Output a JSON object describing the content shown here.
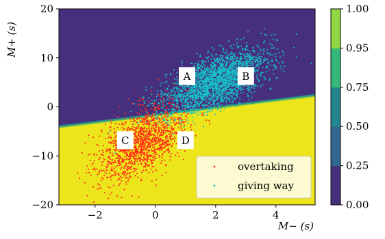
{
  "chart_data": {
    "type": "scatter",
    "title": "",
    "xlabel": "M− (s)",
    "ylabel": "M+ (s)",
    "xlim": [
      -3.2,
      5.3
    ],
    "ylim": [
      -20,
      20
    ],
    "xticks": [
      -2,
      0,
      2,
      4
    ],
    "xtick_labels": [
      "−2",
      "0",
      "2",
      "4"
    ],
    "yticks": [
      -20,
      -10,
      0,
      10,
      20
    ],
    "ytick_labels": [
      "−20",
      "−10",
      "0",
      "10",
      "20"
    ],
    "grid": false,
    "legend_position": "bottom-right",
    "background": {
      "type": "filled-contour",
      "boundary_line": {
        "x": [
          -3.2,
          5.3
        ],
        "y": [
          -4.2,
          2.2
        ]
      },
      "upper_region_value": 0.0,
      "lower_region_value": 1.0
    },
    "colorbar": {
      "levels": [
        0.0,
        0.25,
        0.5,
        0.75,
        0.95,
        1.0
      ],
      "tick_labels": [
        "0.00",
        "0.25",
        "0.50",
        "0.75",
        "0.95",
        "1.00"
      ],
      "colors": [
        "#46307e",
        "#31688e",
        "#25858e",
        "#35b779",
        "#90d743",
        "#ede51b"
      ]
    },
    "series": [
      {
        "name": "overtaking",
        "color": "#ff2a1a",
        "cluster": {
          "cx": -0.4,
          "cy": -7.0,
          "sx": 0.75,
          "sy": 4.0,
          "corr": 0.55,
          "n": 1400
        },
        "points": [
          [
            -0.5,
            -5.5
          ],
          [
            -0.2,
            -3.0
          ],
          [
            -1.0,
            -9.0
          ],
          [
            -1.6,
            -13.0
          ],
          [
            0.0,
            -6.0
          ],
          [
            -0.6,
            -7.2
          ],
          [
            0.3,
            -4.5
          ],
          [
            -1.2,
            -11.0
          ],
          [
            -0.3,
            -2.0
          ],
          [
            0.6,
            -6.5
          ]
        ]
      },
      {
        "name": "giving way",
        "color": "#17c0c7",
        "cluster": {
          "cx": 2.0,
          "cy": 5.2,
          "sx": 0.85,
          "sy": 3.2,
          "corr": 0.6,
          "n": 2400
        },
        "points": [
          [
            2.0,
            5.0
          ],
          [
            1.5,
            3.5
          ],
          [
            2.5,
            7.0
          ],
          [
            3.0,
            9.0
          ],
          [
            1.0,
            1.5
          ],
          [
            2.2,
            6.0
          ],
          [
            1.8,
            4.2
          ],
          [
            2.8,
            11.0
          ],
          [
            3.5,
            15.0
          ],
          [
            0.6,
            0.5
          ]
        ]
      }
    ],
    "annotations": [
      {
        "text": "A",
        "x": 1.05,
        "y": 6.3
      },
      {
        "text": "B",
        "x": 3.0,
        "y": 6.3
      },
      {
        "text": "C",
        "x": -1.0,
        "y": -6.8
      },
      {
        "text": "D",
        "x": 1.0,
        "y": -6.8
      }
    ]
  }
}
